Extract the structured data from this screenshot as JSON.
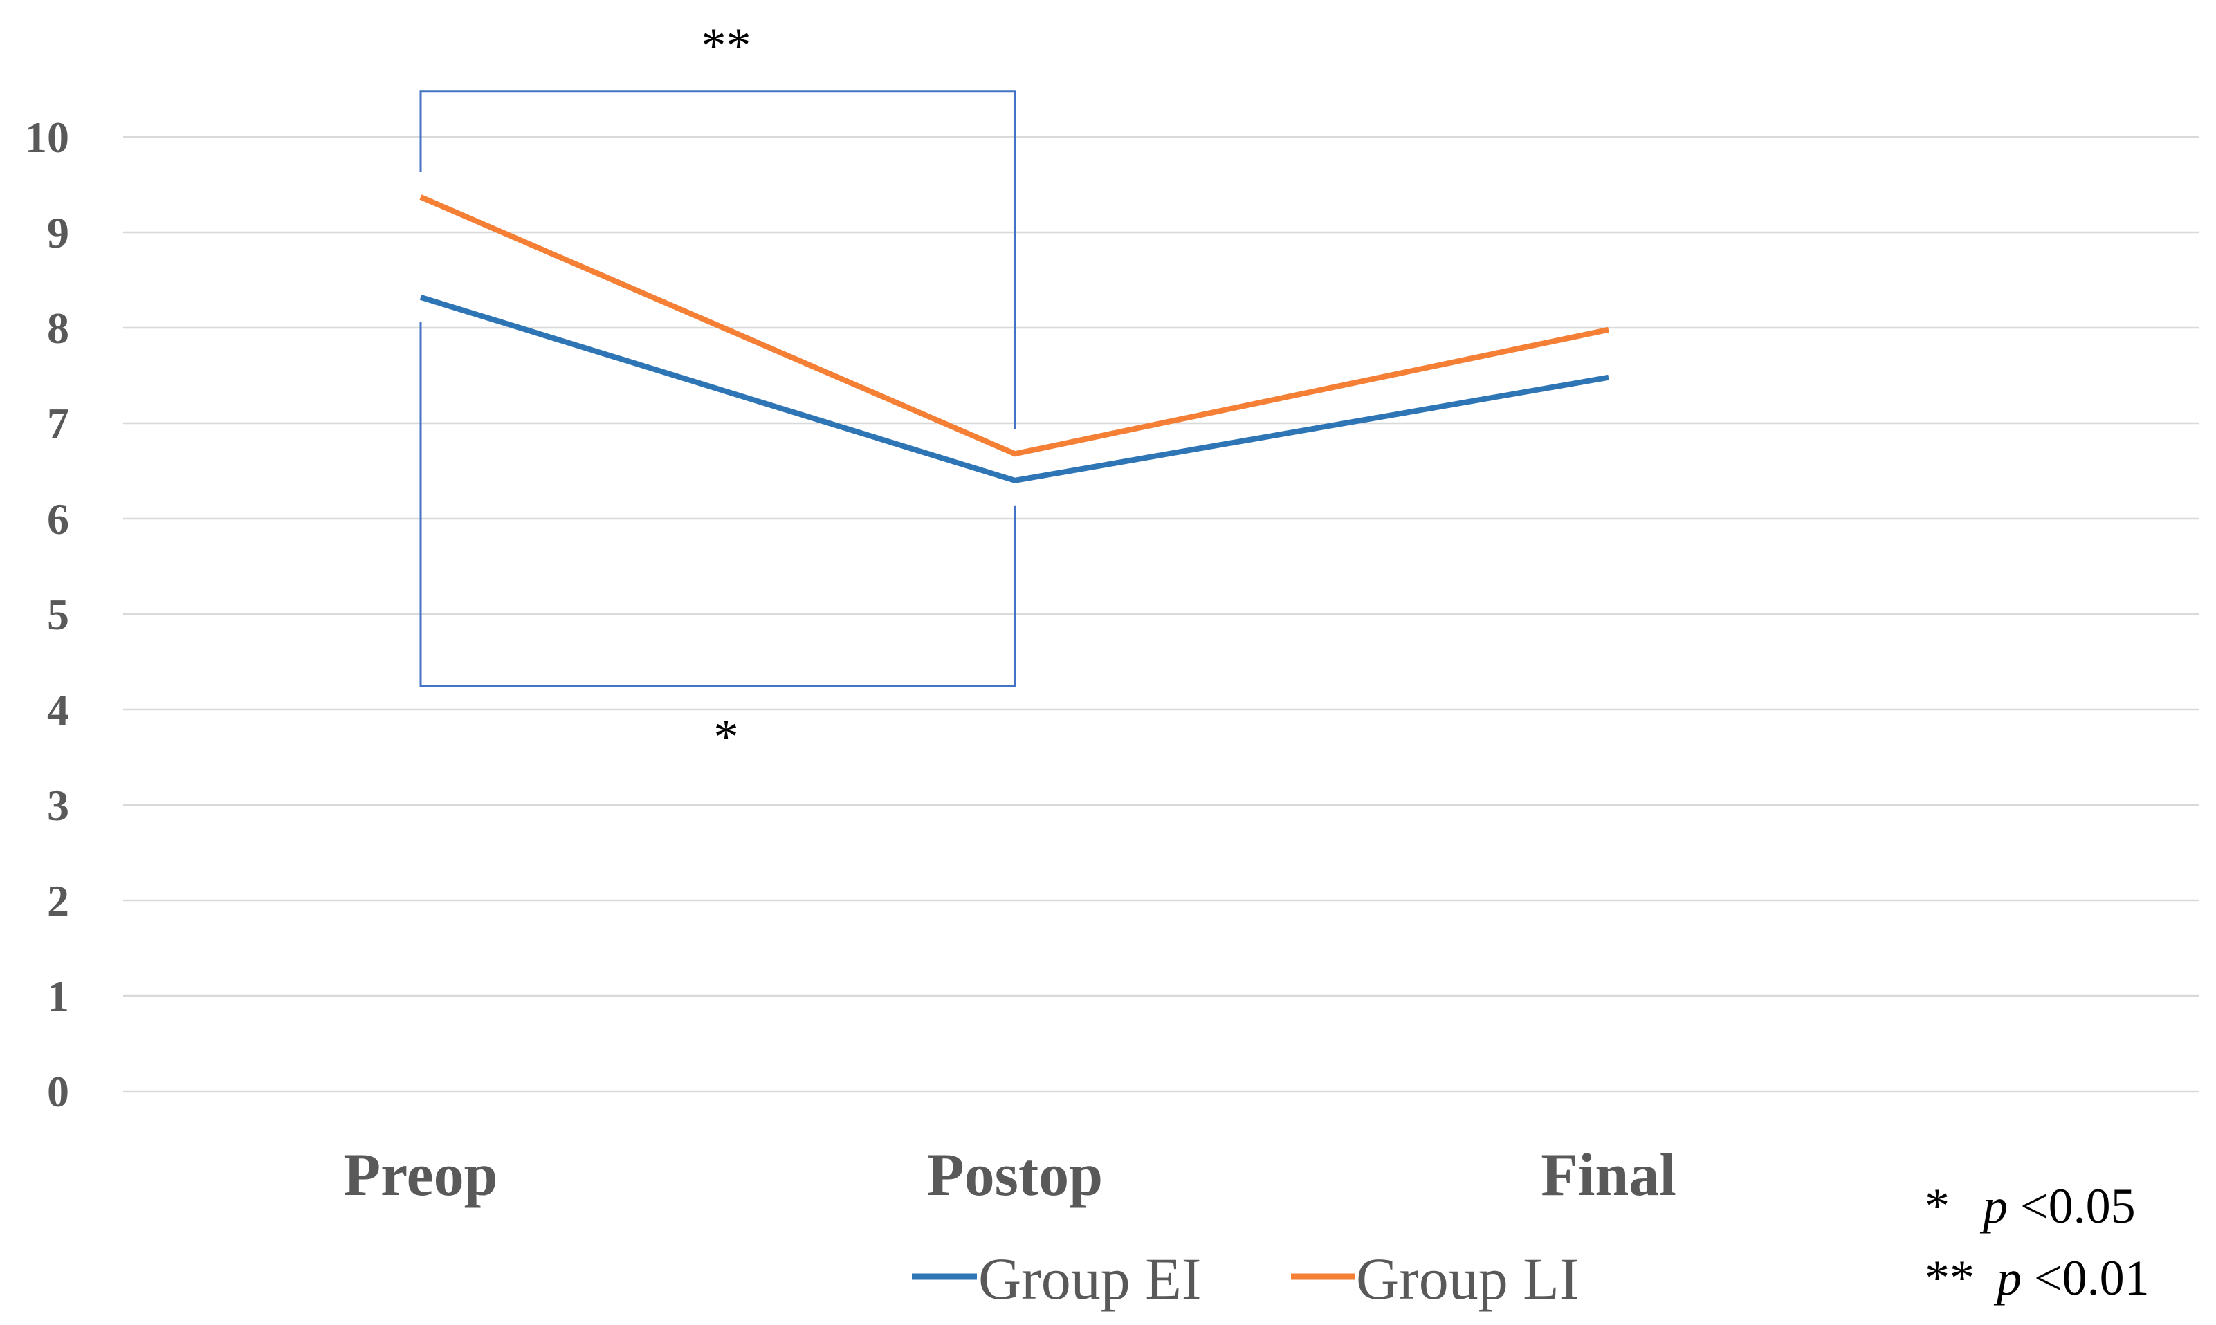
{
  "chart_data": {
    "type": "line",
    "title": "",
    "xlabel": "",
    "ylabel": "",
    "categories": [
      "Preop",
      "Postop",
      "Final"
    ],
    "series": [
      {
        "name": "Group EI",
        "color": "#2e75b6",
        "values": [
          8.32,
          6.4,
          7.48
        ]
      },
      {
        "name": "Group LI",
        "color": "#f47f35",
        "values": [
          9.37,
          6.68,
          7.98
        ]
      }
    ],
    "ylim": [
      0,
      10
    ],
    "yticks": [
      0,
      1,
      2,
      3,
      4,
      5,
      6,
      7,
      8,
      9,
      10
    ],
    "grid": true,
    "legend": "bottom",
    "annotations": [
      {
        "text": "**",
        "between": [
          "Preop",
          "Postop"
        ],
        "series": "Group LI",
        "bracket_level": 10.48
      },
      {
        "text": "*",
        "between": [
          "Preop",
          "Postop"
        ],
        "series": "Group EI",
        "bracket_level": 4.25
      }
    ],
    "significance_notes": [
      {
        "mark": "*",
        "p_symbol": "p",
        "threshold": "<0.05"
      },
      {
        "mark": "**",
        "p_symbol": "p",
        "threshold": "<0.01"
      }
    ]
  }
}
